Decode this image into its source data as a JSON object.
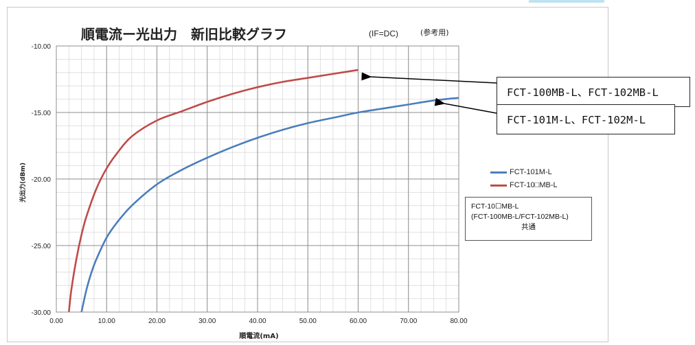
{
  "chart_data": {
    "type": "line",
    "title": "順電流ー光出力　新旧比較グラフ",
    "subtitle_condition": "(IF=DC)",
    "subtitle_ref": "(参考用)",
    "xlabel": "順電流(mA)",
    "ylabel": "光出力(dBm)",
    "xlim": [
      0,
      80
    ],
    "ylim": [
      -30,
      -10
    ],
    "x_ticks": [
      "0.00",
      "10.00",
      "20.00",
      "30.00",
      "40.00",
      "50.00",
      "60.00",
      "70.00",
      "80.00"
    ],
    "y_ticks": [
      "-10.00",
      "-15.00",
      "-20.00",
      "-25.00",
      "-30.00"
    ],
    "grid": true,
    "legend_position": "right",
    "series": [
      {
        "name": "FCT-101M-L",
        "color": "#4a7ebb",
        "x": [
          5,
          6,
          7,
          8,
          10,
          12,
          15,
          20,
          25,
          30,
          35,
          40,
          45,
          50,
          55,
          60,
          65,
          70,
          75,
          80
        ],
        "y": [
          -30.0,
          -28.3,
          -27.0,
          -26.0,
          -24.4,
          -23.3,
          -22.0,
          -20.4,
          -19.3,
          -18.4,
          -17.6,
          -16.9,
          -16.3,
          -15.8,
          -15.4,
          -15.0,
          -14.7,
          -14.4,
          -14.1,
          -13.9
        ]
      },
      {
        "name": "FCT-10□MB-L",
        "color": "#be4b48",
        "x": [
          2.5,
          3,
          4,
          5,
          6,
          8,
          10,
          12,
          15,
          20,
          25,
          30,
          35,
          40,
          45,
          50,
          55,
          60
        ],
        "y": [
          -30.0,
          -28.3,
          -26.0,
          -24.2,
          -22.8,
          -20.7,
          -19.2,
          -18.1,
          -16.8,
          -15.6,
          -14.9,
          -14.2,
          -13.6,
          -13.1,
          -12.7,
          -12.4,
          -12.1,
          -11.8
        ]
      }
    ]
  },
  "callouts": {
    "mb": "FCT-100MB-L、FCT-102MB-L",
    "m": "FCT-101M-L、FCT-102M-L"
  },
  "note": {
    "line1": "FCT-10☐MB-L",
    "line2": "(FCT-100MB-L/FCT-102MB-L)",
    "line3": "共通"
  }
}
